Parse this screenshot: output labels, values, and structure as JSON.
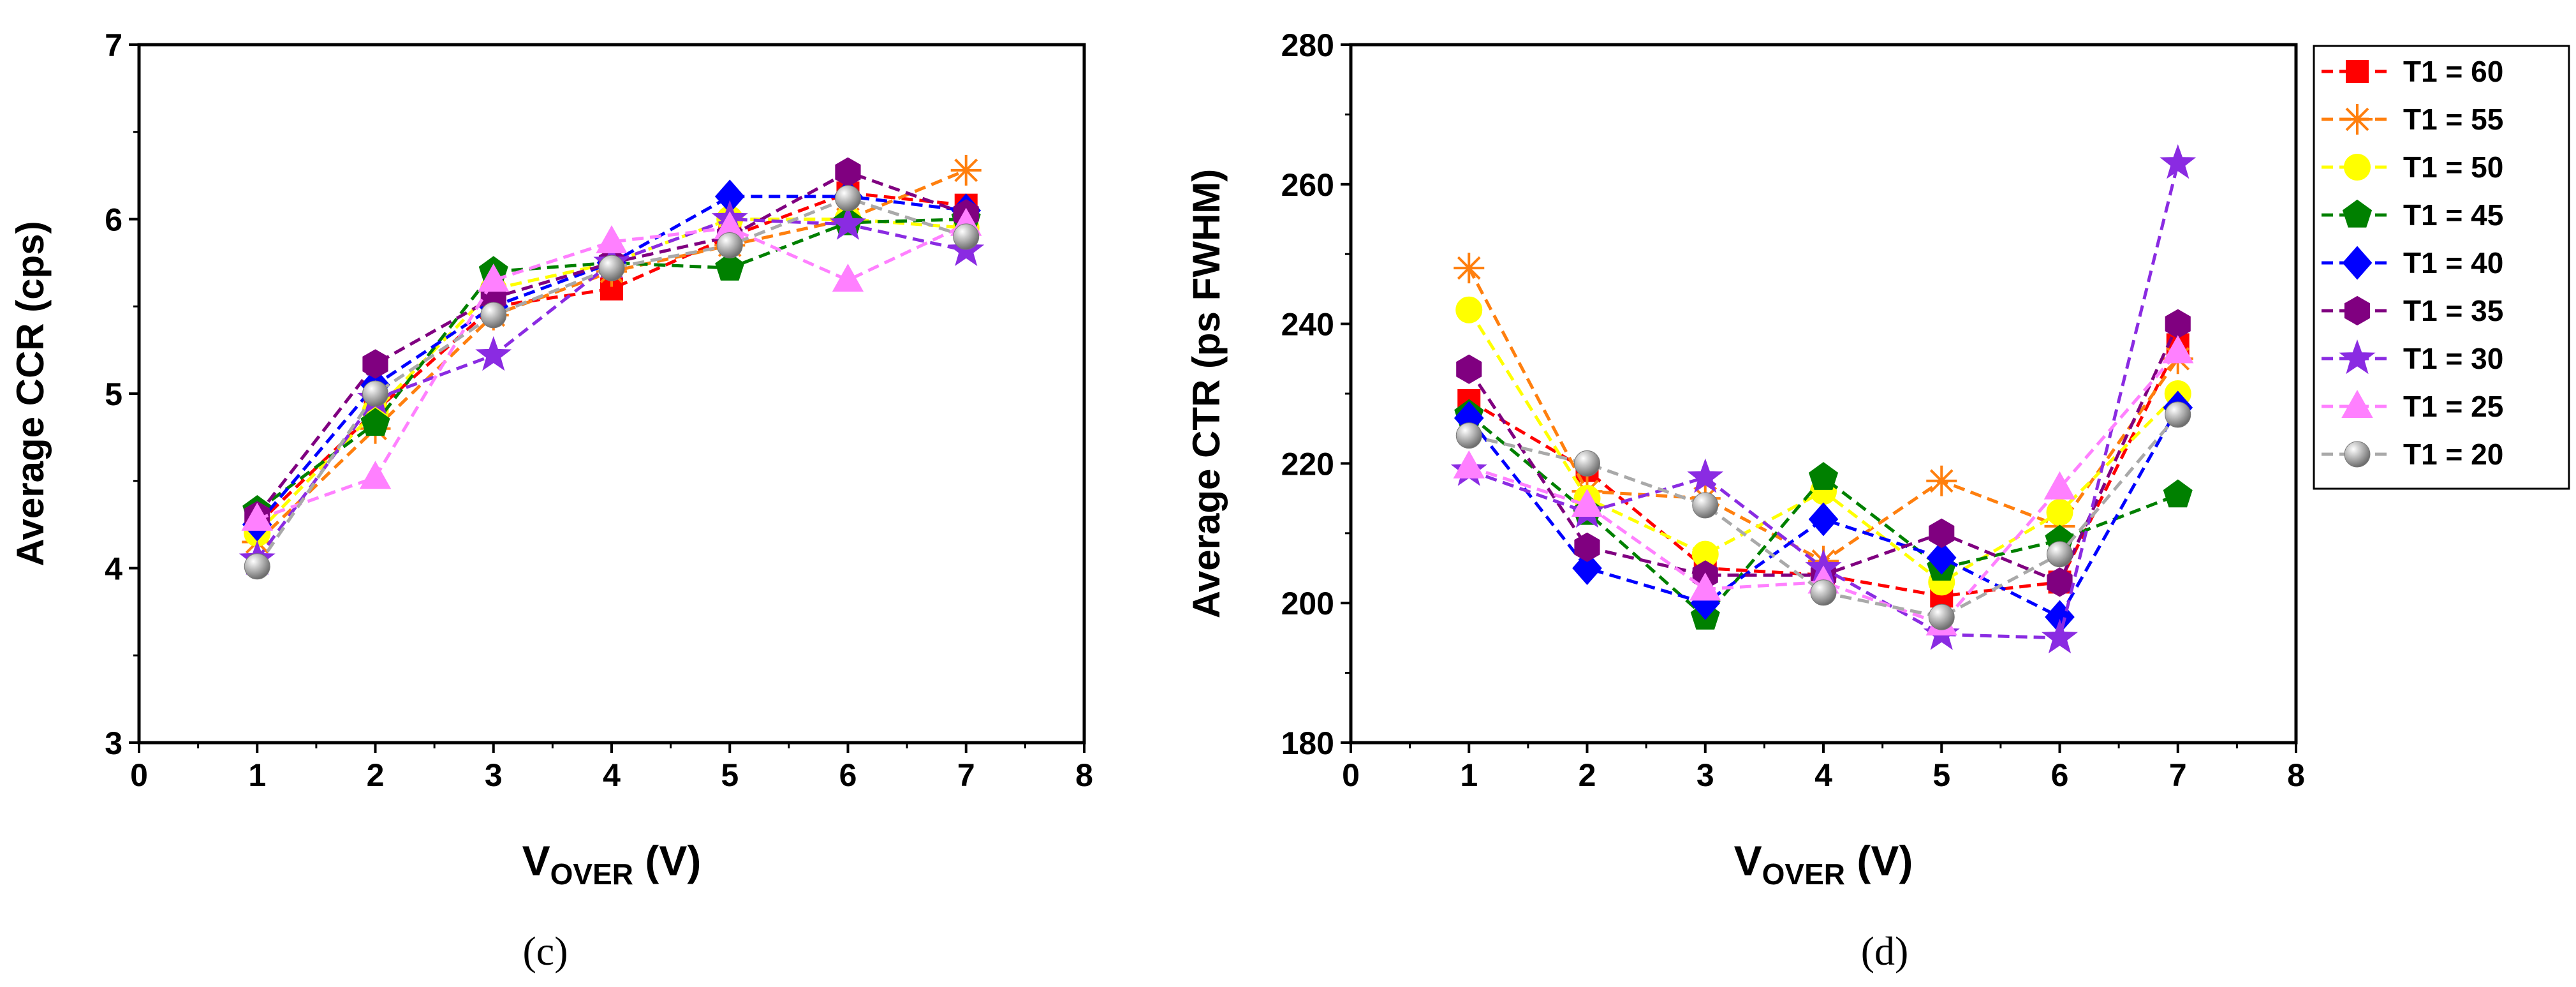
{
  "chart_data": [
    {
      "type": "line",
      "panel": "(c)",
      "ylabel": "Average CCR (cps)",
      "xlabel_main": "V",
      "xlabel_sub": "OVER",
      "xlabel_unit": " (V)",
      "xlim": [
        0,
        8
      ],
      "ylim": [
        3,
        7
      ],
      "xticks": [
        0,
        1,
        2,
        3,
        4,
        5,
        6,
        7,
        8
      ],
      "yticks": [
        3,
        4,
        5,
        6,
        7
      ],
      "x": [
        1,
        2,
        3,
        4,
        5,
        6,
        7
      ],
      "series": [
        {
          "name": "T1 = 60",
          "values": [
            4.25,
            4.9,
            5.5,
            5.6,
            5.9,
            6.15,
            6.08
          ]
        },
        {
          "name": "T1 = 55",
          "values": [
            4.15,
            4.8,
            5.45,
            5.7,
            5.85,
            6.0,
            6.28
          ]
        },
        {
          "name": "T1 = 50",
          "values": [
            4.2,
            4.9,
            5.6,
            5.75,
            6.0,
            6.0,
            5.95
          ]
        },
        {
          "name": "T1 = 45",
          "values": [
            4.33,
            4.83,
            5.7,
            5.75,
            5.72,
            5.98,
            6.0
          ]
        },
        {
          "name": "T1 = 40",
          "values": [
            4.25,
            5.05,
            5.5,
            5.75,
            6.13,
            6.13,
            6.05
          ]
        },
        {
          "name": "T1 = 35",
          "values": [
            4.3,
            5.17,
            5.55,
            5.75,
            5.9,
            6.27,
            6.03
          ]
        },
        {
          "name": "T1 = 30",
          "values": [
            4.05,
            4.97,
            5.22,
            5.75,
            6.0,
            5.97,
            5.82
          ]
        },
        {
          "name": "T1 = 25",
          "values": [
            4.28,
            4.52,
            5.65,
            5.87,
            5.95,
            5.65,
            5.97
          ]
        },
        {
          "name": "T1 = 20",
          "values": [
            4.01,
            5.0,
            5.45,
            5.72,
            5.85,
            6.12,
            5.9
          ]
        }
      ]
    },
    {
      "type": "line",
      "panel": "(d)",
      "ylabel": "Average CTR (ps FWHM)",
      "xlabel_main": "V",
      "xlabel_sub": "OVER",
      "xlabel_unit": " (V)",
      "xlim": [
        0,
        8
      ],
      "ylim": [
        180,
        280
      ],
      "xticks": [
        0,
        1,
        2,
        3,
        4,
        5,
        6,
        7,
        8
      ],
      "yticks": [
        180,
        200,
        220,
        240,
        260,
        280
      ],
      "x": [
        1,
        2,
        3,
        4,
        5,
        6,
        7
      ],
      "series": [
        {
          "name": "T1 = 60",
          "values": [
            229,
            219,
            205,
            204,
            201,
            203,
            237
          ]
        },
        {
          "name": "T1 = 55",
          "values": [
            248,
            216,
            215,
            206,
            217.5,
            211,
            235
          ]
        },
        {
          "name": "T1 = 50",
          "values": [
            242,
            215,
            207,
            216,
            203,
            213,
            230
          ]
        },
        {
          "name": "T1 = 45",
          "values": [
            227,
            213,
            198,
            218,
            205,
            209,
            215.5
          ]
        },
        {
          "name": "T1 = 40",
          "values": [
            226.5,
            205,
            200,
            212,
            206.5,
            198,
            228
          ]
        },
        {
          "name": "T1 = 35",
          "values": [
            233.5,
            208,
            204,
            204,
            210,
            203,
            240
          ]
        },
        {
          "name": "T1 = 30",
          "values": [
            219,
            213,
            218,
            205,
            195.5,
            195,
            263
          ]
        },
        {
          "name": "T1 = 25",
          "values": [
            219.5,
            214,
            202,
            203,
            197,
            216.5,
            236
          ]
        },
        {
          "name": "T1 = 20",
          "values": [
            224,
            220,
            214,
            201.5,
            198,
            207,
            227
          ]
        }
      ]
    }
  ],
  "legend": {
    "entries": [
      {
        "label": "T1 = 60",
        "color": "#ff0000",
        "marker": "square"
      },
      {
        "label": "T1 = 55",
        "color": "#ff7f0e",
        "marker": "asterisk"
      },
      {
        "label": "T1 = 50",
        "color": "#ffff00",
        "marker": "circle"
      },
      {
        "label": "T1 = 45",
        "color": "#008000",
        "marker": "pentagon"
      },
      {
        "label": "T1 = 40",
        "color": "#0000ff",
        "marker": "diamond"
      },
      {
        "label": "T1 = 35",
        "color": "#800080",
        "marker": "hexagon"
      },
      {
        "label": "T1 = 30",
        "color": "#8a2be2",
        "marker": "star"
      },
      {
        "label": "T1 = 25",
        "color": "#ff80ff",
        "marker": "triangle"
      },
      {
        "label": "T1 = 20",
        "color": "#a9a9a9",
        "marker": "sphere"
      }
    ]
  },
  "captions": {
    "left": "(c)",
    "right": "(d)"
  }
}
